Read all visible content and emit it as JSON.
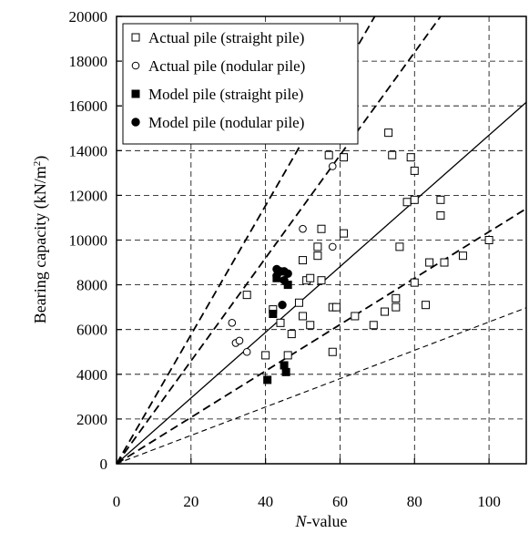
{
  "chart_data": {
    "type": "scatter",
    "title": "",
    "xlabel": "-value",
    "xlabel_italic": "N",
    "ylabel": "Bearing capacity (kN/m",
    "ylabel_unit_sup": "2",
    "ylabel_close": ")",
    "xlim": [
      0,
      110
    ],
    "ylim": [
      0,
      20000
    ],
    "x_ticks": [
      0,
      20,
      40,
      60,
      80,
      100
    ],
    "y_ticks": [
      0,
      2000,
      4000,
      6000,
      8000,
      10000,
      12000,
      14000,
      16000,
      18000,
      20000
    ],
    "grid": true,
    "legend_position": "top-left",
    "series": [
      {
        "name": "Actual pile (straight pile)",
        "marker": "open-square",
        "points": [
          [
            35,
            7550
          ],
          [
            40,
            4850
          ],
          [
            42,
            6900
          ],
          [
            44,
            6300
          ],
          [
            46,
            4850
          ],
          [
            47,
            5800
          ],
          [
            49,
            7200
          ],
          [
            50,
            6600
          ],
          [
            50,
            9100
          ],
          [
            51,
            8200
          ],
          [
            52,
            6200
          ],
          [
            52,
            8300
          ],
          [
            54,
            9700
          ],
          [
            54,
            9300
          ],
          [
            55,
            10500
          ],
          [
            55,
            8200
          ],
          [
            57,
            13800
          ],
          [
            58,
            5000
          ],
          [
            58,
            7000
          ],
          [
            59,
            7000
          ],
          [
            61,
            13700
          ],
          [
            61,
            10300
          ],
          [
            64,
            6600
          ],
          [
            69,
            6200
          ],
          [
            72,
            6800
          ],
          [
            73,
            14800
          ],
          [
            74,
            13800
          ],
          [
            75,
            7400
          ],
          [
            75,
            7000
          ],
          [
            76,
            9700
          ],
          [
            78,
            11700
          ],
          [
            79,
            13700
          ],
          [
            80,
            8100
          ],
          [
            80,
            13100
          ],
          [
            80,
            11800
          ],
          [
            83,
            7100
          ],
          [
            84,
            9000
          ],
          [
            87,
            11800
          ],
          [
            87,
            11100
          ],
          [
            88,
            9000
          ],
          [
            93,
            9300
          ],
          [
            100,
            10000
          ]
        ]
      },
      {
        "name": "Actual pile (nodular pile)",
        "marker": "open-circle",
        "points": [
          [
            31,
            6300
          ],
          [
            32,
            5400
          ],
          [
            33,
            5500
          ],
          [
            35,
            5000
          ],
          [
            50,
            10500
          ],
          [
            58,
            13300
          ],
          [
            58,
            9700
          ]
        ]
      },
      {
        "name": "Model pile (straight pile)",
        "marker": "filled-square",
        "points": [
          [
            40.5,
            3750
          ],
          [
            42,
            6700
          ],
          [
            43,
            8300
          ],
          [
            45,
            4400
          ],
          [
            45.5,
            4100
          ],
          [
            46,
            8000
          ]
        ]
      },
      {
        "name": "Model pile (nodular pile)",
        "marker": "filled-circle",
        "points": [
          [
            43,
            8700
          ],
          [
            43,
            8400
          ],
          [
            44,
            8600
          ],
          [
            44.5,
            7100
          ],
          [
            45,
            8200
          ],
          [
            45,
            8600
          ],
          [
            46,
            8500
          ]
        ]
      }
    ],
    "reference_lines": [
      {
        "style": "solid",
        "slope": 146.9
      },
      {
        "style": "dashed",
        "slope": 288.5
      },
      {
        "style": "dashed",
        "slope": 229.9
      },
      {
        "style": "dashed",
        "slope": 103.7
      },
      {
        "style": "dashed-thin",
        "slope": 63.4
      }
    ]
  }
}
